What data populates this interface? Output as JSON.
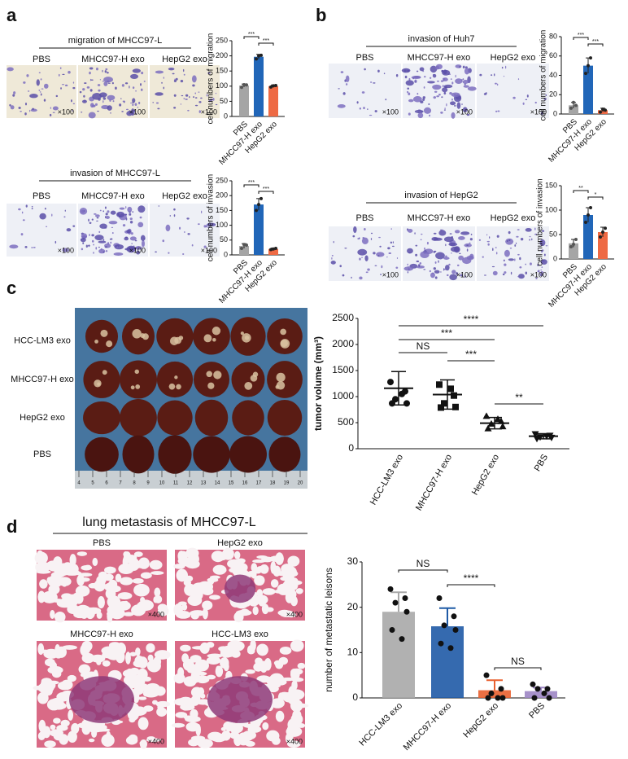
{
  "panel_labels": [
    "a",
    "b",
    "c",
    "d"
  ],
  "micrographs": [
    {
      "title": "migration of MHCC97-L",
      "labels": [
        "PBS",
        "MHCC97-H exo",
        "HepG2 exo"
      ],
      "scale": "×100"
    },
    {
      "title": "invasion of MHCC97-L",
      "labels": [
        "PBS",
        "MHCC97-H exo",
        "HepG2 exo"
      ],
      "scale": "×100"
    },
    {
      "title": "invasion of Huh7",
      "labels": [
        "PBS",
        "MHCC97-H exo",
        "HepG2 exo"
      ],
      "scale": "×100"
    },
    {
      "title": "invasion of HepG2",
      "labels": [
        "PBS",
        "MHCC97-H exo",
        "HepG2 exo"
      ],
      "scale": "×100"
    }
  ],
  "tumor_photo": {
    "rows": [
      "HCC-LM3 exo",
      "MHCC97-H exo",
      "HepG2 exo",
      "PBS"
    ],
    "ruler": [
      4,
      5,
      6,
      7,
      8,
      9,
      10,
      11,
      12,
      13,
      14,
      15,
      16,
      17,
      18,
      19,
      20
    ]
  },
  "lung_histology": {
    "title": "lung metastasis of MHCC97-L",
    "labels": [
      "PBS",
      "HepG2 exo",
      "MHCC97-H exo",
      "HCC-LM3 exo"
    ],
    "scale": "×400"
  },
  "chart_data": [
    {
      "type": "bar",
      "ylabel": "cell numbers of migration",
      "categories": [
        "PBS",
        "MHCC97-H exo",
        "HepG2 exo"
      ],
      "colors": [
        "#a5a5a5",
        "#2166b8",
        "#ee6a44"
      ],
      "values": [
        102,
        197,
        100
      ],
      "errors": [
        5,
        8,
        4
      ],
      "points": [
        [
          96,
          105,
          104
        ],
        [
          190,
          200,
          202
        ],
        [
          97,
          101,
          102
        ]
      ],
      "ylim": [
        0,
        250
      ],
      "yticks": [
        0,
        50,
        100,
        150,
        200,
        250
      ],
      "significance": [
        {
          "text": "***",
          "between": [
            "PBS",
            "MHCC97-H exo"
          ]
        },
        {
          "text": "***",
          "between": [
            "MHCC97-H exo",
            "HepG2 exo"
          ]
        }
      ]
    },
    {
      "type": "bar",
      "ylabel": "cell numbers of invasion",
      "categories": [
        "PBS",
        "MHCC97-H exo",
        "HepG2 exo"
      ],
      "colors": [
        "#a5a5a5",
        "#2166b8",
        "#ee6a44"
      ],
      "values": [
        30,
        170,
        20
      ],
      "errors": [
        8,
        20,
        3
      ],
      "points": [
        [
          22,
          35,
          33
        ],
        [
          150,
          170,
          190
        ],
        [
          18,
          20,
          22
        ]
      ],
      "ylim": [
        0,
        250
      ],
      "yticks": [
        0,
        50,
        100,
        150,
        200,
        250
      ],
      "significance": [
        {
          "text": "***",
          "between": [
            "PBS",
            "MHCC97-H exo"
          ]
        },
        {
          "text": "***",
          "between": [
            "MHCC97-H exo",
            "HepG2 exo"
          ]
        }
      ]
    },
    {
      "type": "bar",
      "ylabel": "cell numbers of migration",
      "categories": [
        "PBS",
        "MHCC97-H exo",
        "HepG2 exo"
      ],
      "colors": [
        "#a5a5a5",
        "#2166b8",
        "#ee6a44"
      ],
      "values": [
        9,
        50,
        4
      ],
      "errors": [
        3,
        8,
        2
      ],
      "points": [
        [
          6,
          12,
          9
        ],
        [
          42,
          50,
          58
        ],
        [
          2,
          5,
          4
        ]
      ],
      "ylim": [
        0,
        80
      ],
      "yticks": [
        0,
        20,
        40,
        60,
        80
      ],
      "significance": [
        {
          "text": "***",
          "between": [
            "PBS",
            "MHCC97-H exo"
          ]
        },
        {
          "text": "***",
          "between": [
            "MHCC97-H exo",
            "HepG2 exo"
          ]
        }
      ]
    },
    {
      "type": "bar",
      "ylabel": "cell numbers of invasion",
      "categories": [
        "PBS",
        "MHCC97-H exo",
        "HepG2 exo"
      ],
      "colors": [
        "#a5a5a5",
        "#2166b8",
        "#ee6a44"
      ],
      "values": [
        32,
        90,
        55
      ],
      "errors": [
        8,
        15,
        10
      ],
      "points": [
        [
          25,
          30,
          40
        ],
        [
          75,
          90,
          105
        ],
        [
          45,
          55,
          63
        ]
      ],
      "ylim": [
        0,
        150
      ],
      "yticks": [
        0,
        50,
        100,
        150
      ],
      "significance": [
        {
          "text": "**",
          "between": [
            "PBS",
            "MHCC97-H exo"
          ]
        },
        {
          "text": "*",
          "between": [
            "MHCC97-H exo",
            "HepG2 exo"
          ]
        }
      ]
    },
    {
      "type": "scatter",
      "ylabel": "tumor volume (mm³)",
      "categories": [
        "HCC-LM3 exo",
        "MHCC97-H exo",
        "HepG2 exo",
        "PBS"
      ],
      "markers": [
        "circle",
        "square",
        "triangle",
        "triangle-down"
      ],
      "color": "#111111",
      "values": [
        1160,
        1040,
        490,
        240
      ],
      "errors": [
        320,
        280,
        110,
        50
      ],
      "points": [
        [
          1280,
          1100,
          950,
          870,
          870,
          1050
        ],
        [
          1230,
          1020,
          870,
          800,
          790,
          1150
        ],
        [
          620,
          520,
          470,
          420,
          380,
          560
        ],
        [
          290,
          260,
          230,
          220,
          200,
          250
        ]
      ],
      "ylim": [
        0,
        2500
      ],
      "yticks": [
        0,
        500,
        1000,
        1500,
        2000,
        2500
      ],
      "significance": [
        {
          "text": "NS",
          "between": [
            "HCC-LM3 exo",
            "MHCC97-H exo"
          ]
        },
        {
          "text": "***",
          "between": [
            "HCC-LM3 exo",
            "HepG2 exo"
          ]
        },
        {
          "text": "***",
          "between": [
            "MHCC97-H exo",
            "HepG2 exo"
          ]
        },
        {
          "text": "****",
          "between": [
            "HCC-LM3 exo",
            "PBS"
          ]
        },
        {
          "text": "**",
          "between": [
            "HepG2 exo",
            "PBS"
          ]
        }
      ]
    },
    {
      "type": "bar",
      "ylabel": "number of metastatic leisons",
      "categories": [
        "HCC-LM3 exo",
        "MHCC97-H exo",
        "HepG2 exo",
        "PBS"
      ],
      "colors": [
        "#a8a8a8",
        "#1f5aa6",
        "#e9602f",
        "#9d86c4"
      ],
      "values": [
        19,
        15.8,
        1.7,
        1.5
      ],
      "errors": [
        4.3,
        4,
        2.2,
        0.8
      ],
      "points": [
        [
          24,
          22,
          21,
          19,
          15,
          13
        ],
        [
          22,
          18,
          16,
          15,
          12,
          11
        ],
        [
          5,
          2,
          1,
          0,
          0,
          0
        ],
        [
          3,
          2,
          2,
          0,
          0,
          1
        ]
      ],
      "ylim": [
        0,
        30
      ],
      "yticks": [
        0,
        10,
        20,
        30
      ],
      "significance": [
        {
          "text": "NS",
          "between": [
            "HCC-LM3 exo",
            "MHCC97-H exo"
          ]
        },
        {
          "text": "****",
          "between": [
            "MHCC97-H exo",
            "HepG2 exo"
          ]
        },
        {
          "text": "NS",
          "between": [
            "HepG2 exo",
            "PBS"
          ]
        }
      ]
    }
  ]
}
